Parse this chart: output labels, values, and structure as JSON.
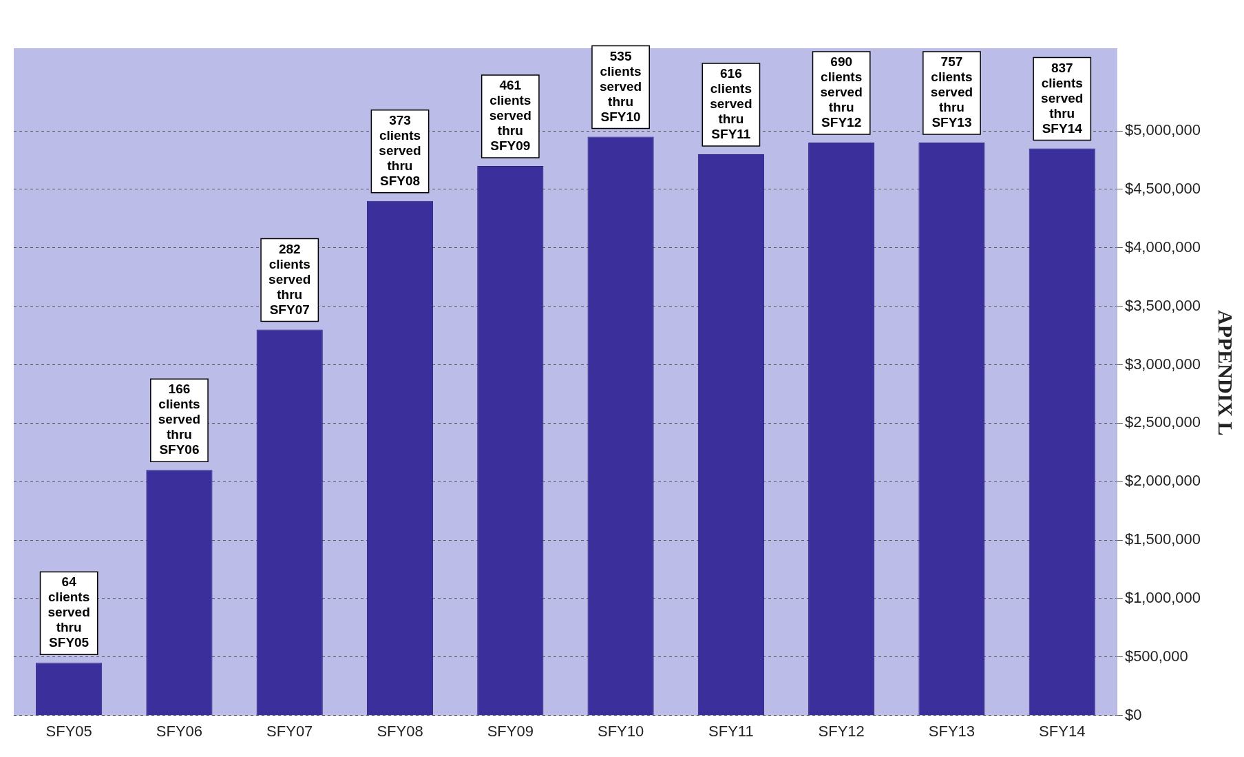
{
  "chart_data": {
    "type": "bar",
    "categories": [
      "SFY05",
      "SFY06",
      "SFY07",
      "SFY08",
      "SFY09",
      "SFY10",
      "SFY11",
      "SFY12",
      "SFY13",
      "SFY14"
    ],
    "values": [
      450000,
      2100000,
      3300000,
      4400000,
      4700000,
      4950000,
      4800000,
      4900000,
      4900000,
      4850000
    ],
    "color": "#3b2f9c",
    "ylim": [
      0,
      5000000
    ],
    "yticks": [
      {
        "value": 0,
        "label": "$0"
      },
      {
        "value": 500000,
        "label": "$500,000"
      },
      {
        "value": 1000000,
        "label": "$1,000,000"
      },
      {
        "value": 1500000,
        "label": "$1,500,000"
      },
      {
        "value": 2000000,
        "label": "$2,000,000"
      },
      {
        "value": 2500000,
        "label": "$2,500,000"
      },
      {
        "value": 3000000,
        "label": "$3,000,000"
      },
      {
        "value": 3500000,
        "label": "$3,500,000"
      },
      {
        "value": 4000000,
        "label": "$4,000,000"
      },
      {
        "value": 4500000,
        "label": "$4,500,000"
      },
      {
        "value": 5000000,
        "label": "$5,000,000"
      }
    ],
    "grid": "y",
    "legend": false,
    "annotations": [
      {
        "text": "64 clients served thru SFY05",
        "x": "SFY05",
        "y": 450000
      },
      {
        "text": "166 clients served thru SFY06",
        "x": "SFY06",
        "y": 2100000
      },
      {
        "text": "282 clients served thru SFY07",
        "x": "SFY07",
        "y": 3300000
      },
      {
        "text": "373 clients served thru SFY08",
        "x": "SFY08",
        "y": 4400000
      },
      {
        "text": "461 clients served thru SFY09",
        "x": "SFY09",
        "y": 4700000
      },
      {
        "text": "535 clients served thru SFY10",
        "x": "SFY10",
        "y": 4950000
      },
      {
        "text": "616 clients served thru SFY11",
        "x": "SFY11",
        "y": 4800000
      },
      {
        "text": "690 clients served thru SFY12",
        "x": "SFY12",
        "y": 4900000
      },
      {
        "text": "757 clients served thru SFY13",
        "x": "SFY13",
        "y": 4900000
      },
      {
        "text": "837 clients served thru SFY14",
        "x": "SFY14",
        "y": 4850000
      },
      "APPENDIX L"
    ]
  }
}
